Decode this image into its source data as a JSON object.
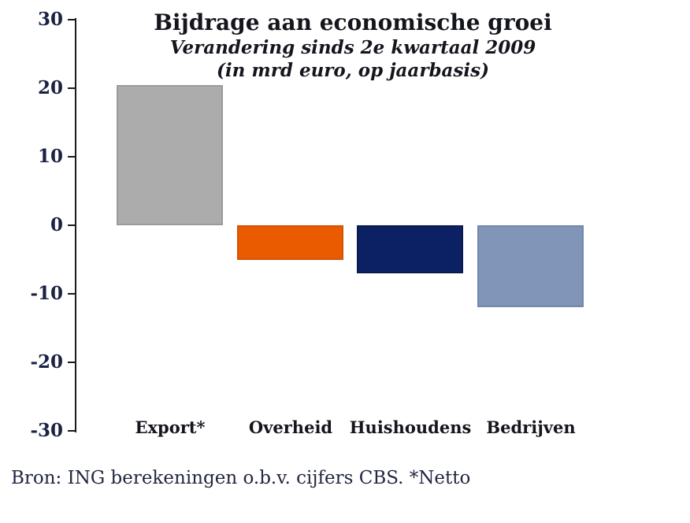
{
  "chart_data": {
    "type": "bar",
    "title": "Bijdrage aan economische groei",
    "subtitle_line1": "Verandering sinds 2e kwartaal 2009",
    "subtitle_line2": "(in mrd euro, op jaarbasis)",
    "categories": [
      "Export*",
      "Overheid",
      "Huishoudens",
      "Bedrijven"
    ],
    "values": [
      20.5,
      -5,
      -7,
      -12
    ],
    "bar_fill_colors": [
      "#ACACAC",
      "#EA5B00",
      "#0C2163",
      "#8095B8"
    ],
    "bar_border_colors": [
      "#9A9A9A",
      "#D35205",
      "#091A4D",
      "#7287AB"
    ],
    "ylabel": "",
    "xlabel": "",
    "ylim": [
      -30,
      30
    ],
    "yticks": [
      30,
      20,
      10,
      0,
      -10,
      -20,
      -30
    ],
    "grid": false,
    "legend": null
  },
  "source_note": "Bron: ING berekeningen o.b.v. cijfers CBS. *Netto",
  "colors": {
    "background": "#ffffff",
    "axis": "#1a1a1a",
    "tick_text": "#1b2142",
    "title_text": "#15161d",
    "source_text": "#232740"
  }
}
